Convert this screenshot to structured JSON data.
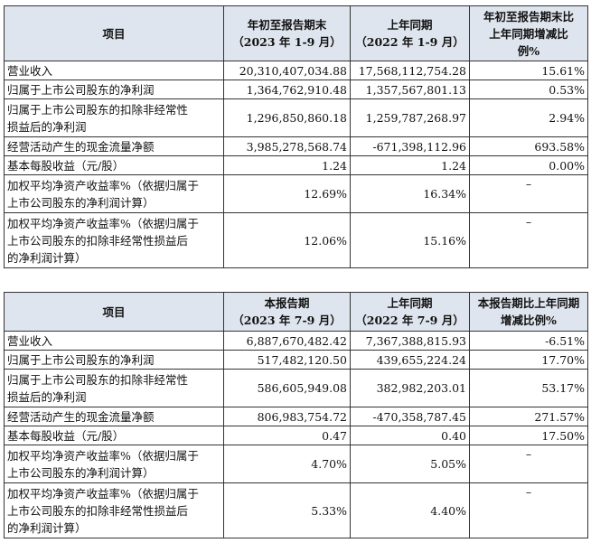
{
  "table1": {
    "headers": [
      "项目",
      "年初至报告期末\n（2023 年 1-9 月）",
      "上年同期\n（2022 年 1-9 月）",
      "年初至报告期末比\n上年同期增减比\n例%"
    ],
    "rows": [
      [
        "营业收入",
        "20,310,407,034.88",
        "17,568,112,754.28",
        "15.61%"
      ],
      [
        "归属于上市公司股东的净利润",
        "1,364,762,910.48",
        "1,357,567,801.13",
        "0.53%"
      ],
      [
        "归属于上市公司股东的扣除非经常性\n损益后的净利润",
        "1,296,850,860.18",
        "1,259,787,268.97",
        "2.94%"
      ],
      [
        "经营活动产生的现金流量净额",
        "3,985,278,568.74",
        "-671,398,112.96",
        "693.58%"
      ],
      [
        "基本每股收益（元/股）",
        "1.24",
        "1.24",
        "0.00%"
      ],
      [
        "加权平均净资产收益率%（依据归属于\n上市公司股东的净利润计算）",
        "12.69%",
        "16.34%",
        "–"
      ],
      [
        "加权平均净资产收益率%（依据归属于\n上市公司股东的扣除非经常性损益后\n的净利润计算）",
        "12.06%",
        "15.16%",
        "–"
      ]
    ]
  },
  "table2": {
    "headers": [
      "项目",
      "本报告期\n（2023 年 7-9 月）",
      "上年同期\n（2022 年 7-9 月）",
      "本报告期比上年同期\n增减比例%"
    ],
    "rows": [
      [
        "营业收入",
        "6,887,670,482.42",
        "7,367,388,815.93",
        "-6.51%"
      ],
      [
        "归属于上市公司股东的净利润",
        "517,482,120.50",
        "439,655,224.24",
        "17.70%"
      ],
      [
        "归属于上市公司股东的扣除非经常性\n损益后的净利润",
        "586,605,949.08",
        "382,982,203.01",
        "53.17%"
      ],
      [
        "经营活动产生的现金流量净额",
        "806,983,754.72",
        "-470,358,787.45",
        "271.57%"
      ],
      [
        "基本每股收益（元/股）",
        "0.47",
        "0.40",
        "17.50%"
      ],
      [
        "加权平均净资产收益率%（依据归属于\n上市公司股东的净利润计算）",
        "4.70%",
        "5.05%",
        "–"
      ],
      [
        "加权平均净资产收益率%（依据归属于\n上市公司股东的扣除非经常性损益后\n的净利润计算）",
        "5.33%",
        "4.40%",
        "–"
      ]
    ]
  }
}
